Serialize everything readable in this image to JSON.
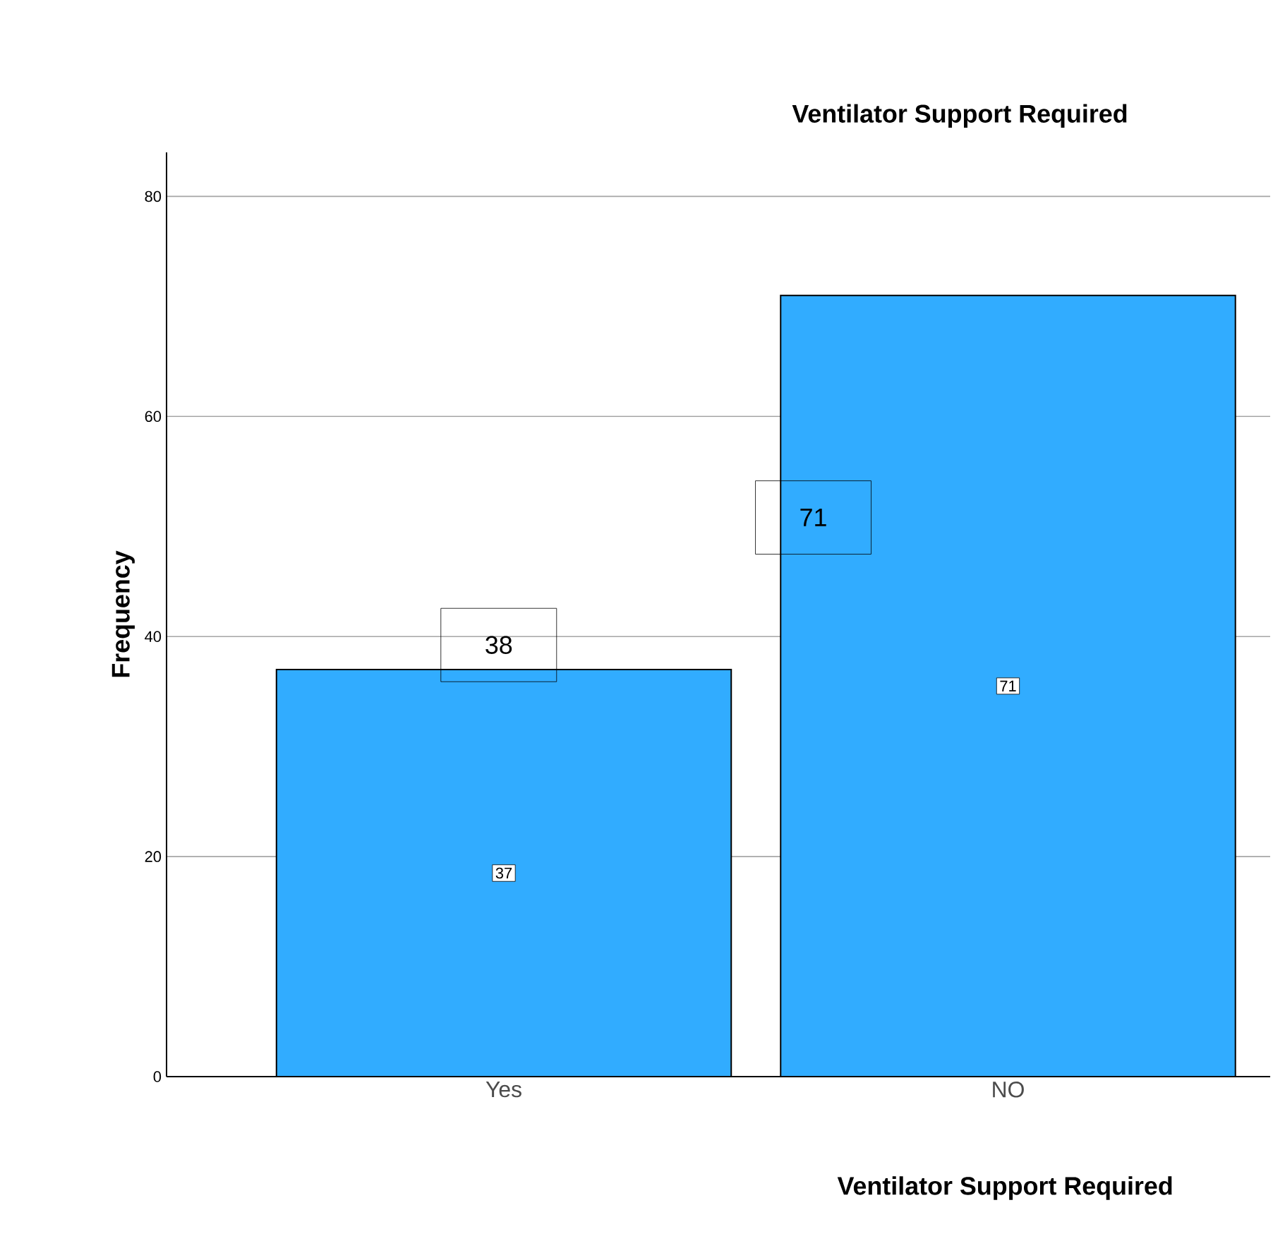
{
  "chart_data": {
    "type": "bar",
    "title": "Ventilator Support Required",
    "xlabel": "Ventilator Support Required",
    "ylabel": "Frequency",
    "categories": [
      "Yes",
      "NO"
    ],
    "values": [
      37,
      71
    ],
    "color": "#31acff",
    "ylim": [
      0,
      84
    ],
    "yticks": [
      0,
      20,
      40,
      60,
      80
    ],
    "grid": "y",
    "data_labels": true,
    "annotations": [
      "38",
      "71"
    ]
  }
}
